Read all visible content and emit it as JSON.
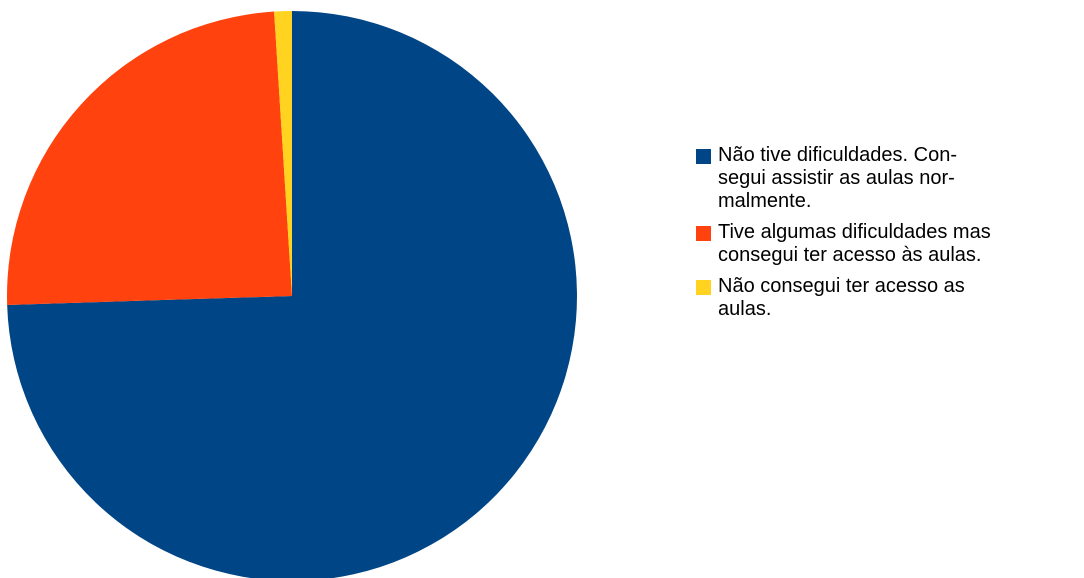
{
  "chart_data": {
    "type": "pie",
    "title": "",
    "start_angle_deg": 0,
    "direction": "clockwise",
    "legend_position": "right",
    "slices": [
      {
        "label": "Não tive dificuldades. Con-\nsegui assistir as aulas nor-\nmalmente.",
        "value": 74.5,
        "color": "#004586"
      },
      {
        "label": "Tive algumas dificuldades mas\nconsegui ter acesso às aulas.",
        "value": 24.5,
        "color": "#ff420e"
      },
      {
        "label": "Não consegui ter acesso as\naulas.",
        "value": 1.0,
        "color": "#ffd320"
      }
    ]
  }
}
